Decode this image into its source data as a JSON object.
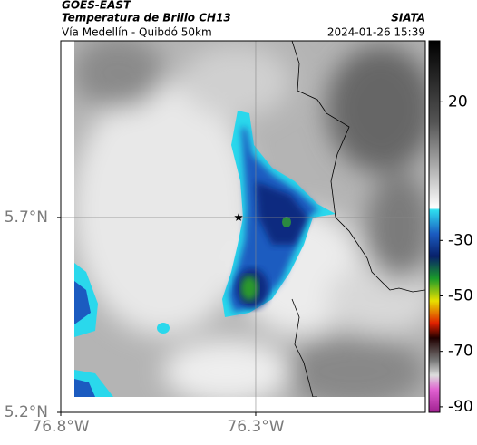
{
  "header": {
    "source": "GOES-EAST",
    "product": "Temperatura de Brillo CH13",
    "agency": "SIATA",
    "region": "Vía Medellín - Quibdó 50km",
    "timestamp": "2024-01-26 15:39"
  },
  "map": {
    "xlim": [
      -76.8,
      -75.865
    ],
    "ylim": [
      5.2,
      6.153
    ],
    "xticks": [
      {
        "value": -76.8,
        "label": "76.8°W"
      },
      {
        "value": -76.3,
        "label": "76.3°W"
      }
    ],
    "yticks": [
      {
        "value": 5.2,
        "label": "5.2°N"
      },
      {
        "value": 5.7,
        "label": "5.7°N"
      }
    ],
    "marker": {
      "lon": -76.344,
      "lat": 5.7
    }
  },
  "colorbar": {
    "lim": [
      -92,
      42
    ],
    "ticks": [
      20,
      -30,
      -50,
      -70,
      -90
    ]
  }
}
